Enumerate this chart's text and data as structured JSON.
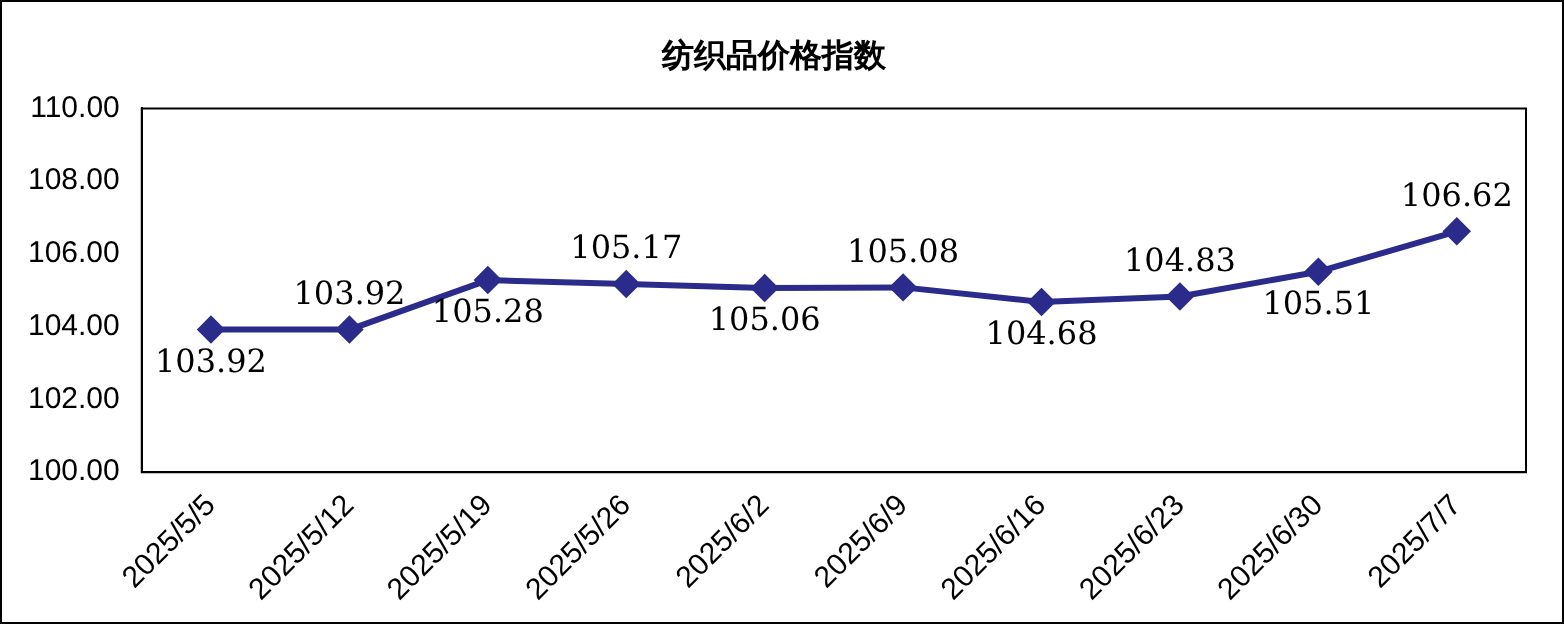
{
  "chart_data": {
    "type": "line",
    "title": "纺织品价格指数",
    "categories": [
      "2025/5/5",
      "2025/5/12",
      "2025/5/19",
      "2025/5/26",
      "2025/6/2",
      "2025/6/9",
      "2025/6/16",
      "2025/6/23",
      "2025/6/30",
      "2025/7/7"
    ],
    "series": [
      {
        "color": "#2b2b8c",
        "values": [
          103.92,
          103.92,
          105.28,
          105.17,
          105.06,
          105.08,
          104.68,
          104.83,
          105.51,
          106.62
        ]
      }
    ],
    "ylim": [
      100,
      110
    ],
    "yticks": [
      {
        "value": 100,
        "label": "100.00"
      },
      {
        "value": 102,
        "label": "102.00"
      },
      {
        "value": 104,
        "label": "104.00"
      },
      {
        "value": 106,
        "label": "106.00"
      },
      {
        "value": 108,
        "label": "108.00"
      },
      {
        "value": 110,
        "label": "110.00"
      }
    ],
    "grid": false,
    "legend": false,
    "marker": "diamond",
    "line_style": "solid",
    "data_labels": true
  }
}
